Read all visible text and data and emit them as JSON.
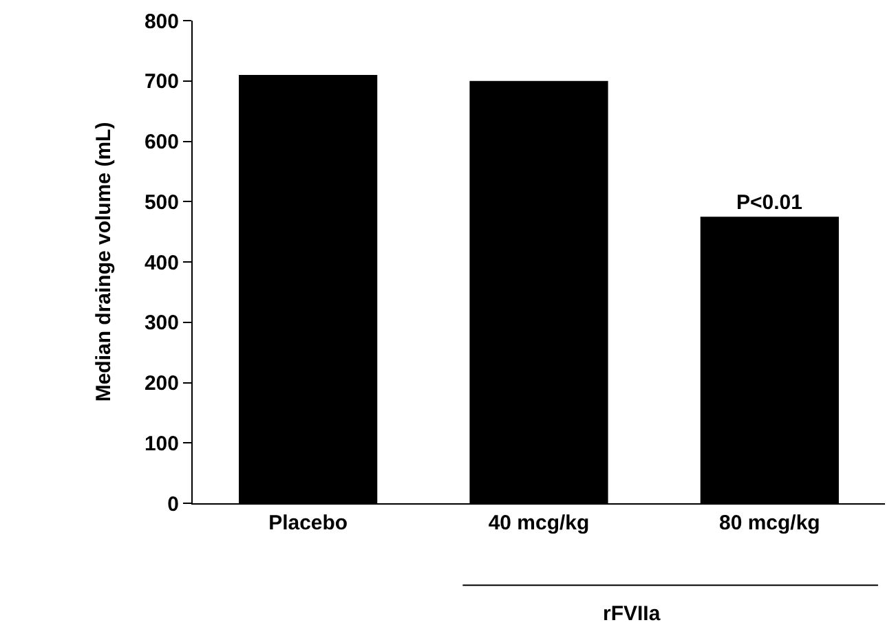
{
  "chart_data": {
    "type": "bar",
    "categories": [
      "Placebo",
      "40 mcg/kg",
      "80 mcg/kg"
    ],
    "values": [
      710,
      700,
      475
    ],
    "color": "#000000",
    "ylabel": "Median drainge volume (mL)",
    "ylim": [
      0,
      800
    ],
    "yticks": [
      0,
      100,
      200,
      300,
      400,
      500,
      600,
      700,
      800
    ],
    "annotations": [
      {
        "text": "P<0.01",
        "x": "80 mcg/kg",
        "y": 475
      },
      "rFVIIa"
    ]
  }
}
